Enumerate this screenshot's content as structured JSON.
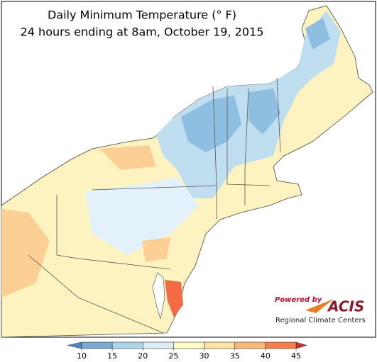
{
  "title": [
    "Daily Minimum Temperature (° F)",
    "24 hours ending at 8am, October 19, 2015"
  ],
  "colorbar": {
    "ticks": [
      10,
      15,
      20,
      25,
      30,
      35,
      40,
      45
    ],
    "colors": [
      "#78aad5",
      "#add6ea",
      "#ddeef7",
      "#fefec5",
      "#fee3a3",
      "#fbb876",
      "#f67e4d"
    ],
    "under_color": "#4a88c4",
    "over_color": "#d73027"
  },
  "logo": {
    "powered_by": "Powered by",
    "name": "ACIS",
    "subtitle": "Regional Climate Centers"
  }
}
